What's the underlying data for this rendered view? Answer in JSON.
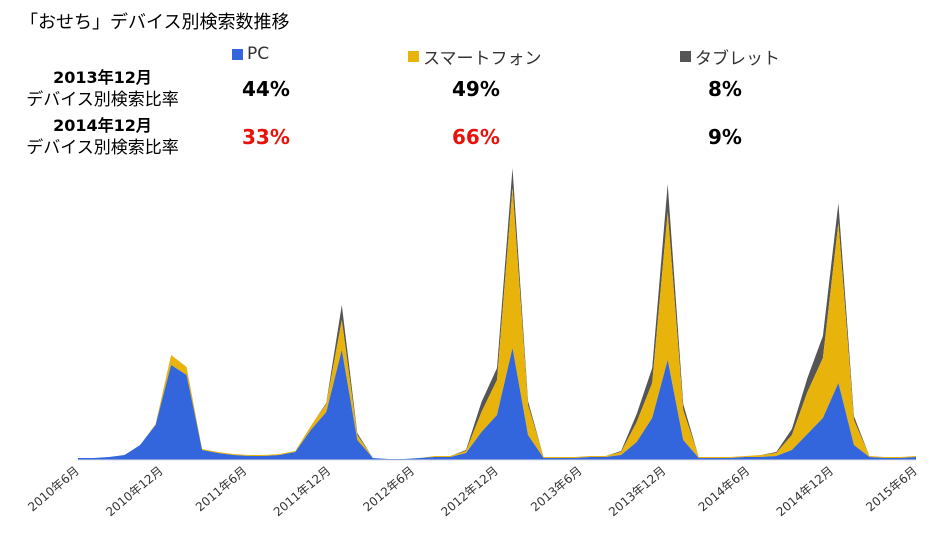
{
  "title": "「おせち」デバイス別検索数推移",
  "legend": [
    {
      "label": "PC",
      "color": "#3366dd"
    },
    {
      "label": "スマートフォン",
      "color": "#e8b30b"
    },
    {
      "label": "タブレット",
      "color": "#555555"
    }
  ],
  "ratios": [
    {
      "year": "2013年12月",
      "caption": "デバイス別検索比率",
      "values": [
        "44%",
        "49%",
        "8%"
      ],
      "color": "#000000"
    },
    {
      "year": "2014年12月",
      "caption": "デバイス別検索比率",
      "values": [
        "33%",
        "66%",
        "9%"
      ],
      "colors": [
        "#e8120c",
        "#e8120c",
        "#000000"
      ]
    }
  ],
  "chart_data": {
    "type": "area",
    "stacked": true,
    "x_ticks": [
      "2010年6月",
      "2010年12月",
      "2011年6月",
      "2011年12月",
      "2012年6月",
      "2012年12月",
      "2013年6月",
      "2013年12月",
      "2014年6月",
      "2014年12月",
      "2015年6月"
    ],
    "series": [
      {
        "name": "PC",
        "color": "#3366dd",
        "values": [
          2,
          2,
          3,
          5,
          15,
          35,
          95,
          85,
          10,
          7,
          5,
          4,
          4,
          5,
          8,
          30,
          48,
          110,
          20,
          2,
          1,
          1,
          2,
          3,
          3,
          7,
          28,
          45,
          112,
          25,
          2,
          2,
          2,
          3,
          3,
          5,
          18,
          42,
          100,
          20,
          2,
          2,
          2,
          3,
          3,
          4,
          10,
          26,
          42,
          77,
          15,
          3,
          2,
          2,
          3
        ]
      },
      {
        "name": "スマートフォン",
        "color": "#e8b30b",
        "values": [
          0,
          0,
          0,
          0,
          0,
          1,
          10,
          8,
          1,
          1,
          1,
          1,
          1,
          1,
          1,
          4,
          8,
          30,
          5,
          0,
          0,
          0,
          0,
          1,
          1,
          2,
          20,
          35,
          160,
          30,
          1,
          1,
          1,
          1,
          1,
          3,
          20,
          35,
          148,
          30,
          1,
          1,
          1,
          1,
          2,
          3,
          15,
          42,
          60,
          160,
          25,
          1,
          1,
          1,
          1
        ]
      },
      {
        "name": "タブレット",
        "color": "#555555",
        "values": [
          0,
          0,
          0,
          0,
          0,
          0,
          0,
          0,
          0,
          0,
          0,
          0,
          0,
          0,
          0,
          0,
          1,
          15,
          2,
          0,
          0,
          0,
          0,
          0,
          0,
          1,
          10,
          12,
          20,
          4,
          0,
          0,
          0,
          0,
          0,
          1,
          8,
          15,
          28,
          6,
          0,
          0,
          0,
          0,
          0,
          1,
          6,
          14,
          22,
          20,
          4,
          0,
          0,
          0,
          0
        ]
      }
    ],
    "ylim": [
      0,
      330
    ],
    "grid": false
  }
}
